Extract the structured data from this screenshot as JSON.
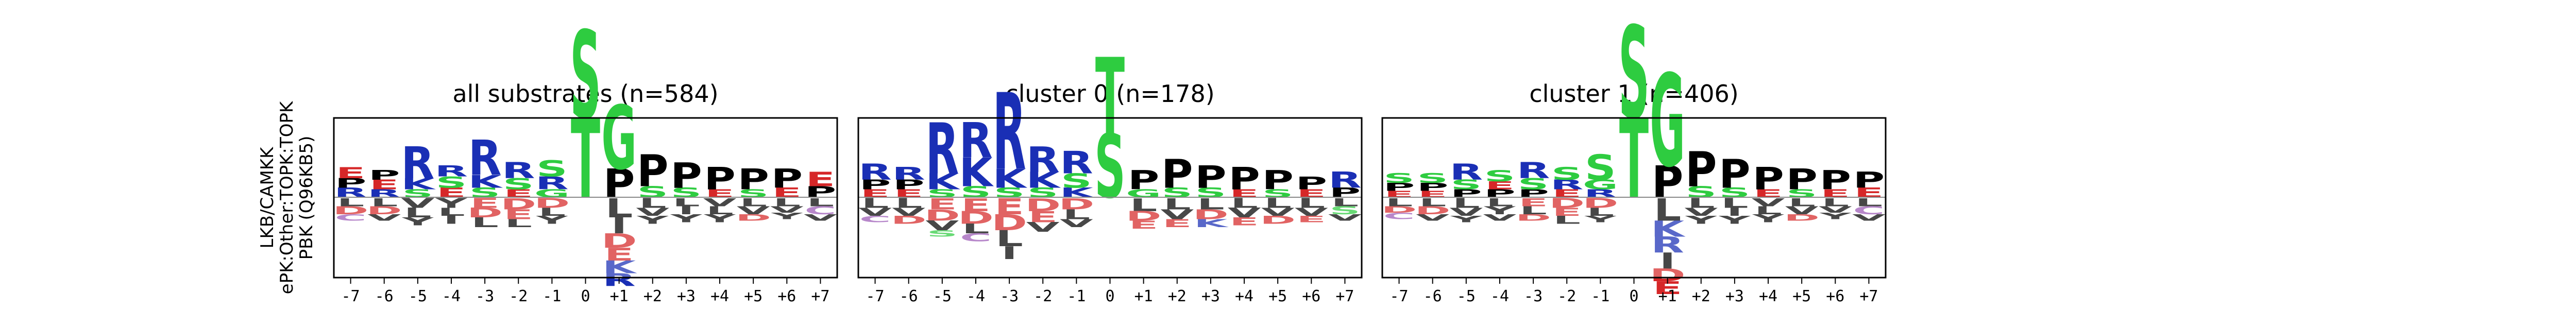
{
  "ylabel_lines": [
    "LKB/CAMKK",
    "ePK:Other:TOPK:TOPK",
    "PBK (Q96KB5)"
  ],
  "colors": {
    "S": "#2ecc40",
    "T": "#2ecc40",
    "G": "#2ecc40",
    "R": "#1a2fb5",
    "K": "#1a2fb5",
    "H": "#1a2fb5",
    "P": "#000000",
    "L": "#000000",
    "I": "#000000",
    "V": "#000000",
    "A": "#000000",
    "M": "#000000",
    "F": "#000000",
    "W": "#000000",
    "Y": "#000000",
    "D": "#d62728",
    "E": "#d62728",
    "N": "#9b59b6",
    "Q": "#9b59b6",
    "C": "#9b59b6"
  },
  "chart_data": [
    {
      "type": "logo",
      "title": "all substrates (n=584)",
      "positions": [
        "-7",
        "-6",
        "-5",
        "-4",
        "-3",
        "-2",
        "-1",
        "0",
        "+1",
        "+2",
        "+3",
        "+4",
        "+5",
        "+6",
        "+7"
      ],
      "center": "0",
      "pos_stacks": [
        [
          [
            "E",
            0.07
          ],
          [
            "R",
            0.06
          ],
          [
            "P",
            0.06
          ]
        ],
        [
          [
            "E",
            0.06
          ],
          [
            "P",
            0.06
          ],
          [
            "R",
            0.05
          ]
        ],
        [
          [
            "R",
            0.2
          ],
          [
            "K",
            0.07
          ],
          [
            "S",
            0.05
          ]
        ],
        [
          [
            "S",
            0.07
          ],
          [
            "R",
            0.07
          ],
          [
            "E",
            0.06
          ]
        ],
        [
          [
            "R",
            0.22
          ],
          [
            "K",
            0.08
          ],
          [
            "S",
            0.06
          ]
        ],
        [
          [
            "R",
            0.1
          ],
          [
            "S",
            0.07
          ],
          [
            "E",
            0.05
          ]
        ],
        [
          [
            "S",
            0.1
          ],
          [
            "R",
            0.08
          ],
          [
            "G",
            0.05
          ]
        ],
        [
          [
            "S",
            0.55
          ],
          [
            "T",
            0.5
          ]
        ],
        [
          [
            "G",
            0.4
          ],
          [
            "P",
            0.18
          ]
        ],
        [
          [
            "P",
            0.2
          ],
          [
            "S",
            0.07
          ]
        ],
        [
          [
            "P",
            0.16
          ],
          [
            "S",
            0.06
          ]
        ],
        [
          [
            "P",
            0.14
          ],
          [
            "E",
            0.05
          ]
        ],
        [
          [
            "P",
            0.13
          ],
          [
            "S",
            0.05
          ]
        ],
        [
          [
            "P",
            0.12
          ],
          [
            "E",
            0.06
          ]
        ],
        [
          [
            "E",
            0.09
          ],
          [
            "P",
            0.07
          ]
        ]
      ],
      "neg_stacks": [
        [
          [
            "L",
            0.05
          ],
          [
            "D",
            0.05
          ],
          [
            "C",
            0.04
          ]
        ],
        [
          [
            "L",
            0.05
          ],
          [
            "D",
            0.05
          ],
          [
            "V",
            0.04
          ]
        ],
        [
          [
            "V",
            0.06
          ],
          [
            "L",
            0.06
          ],
          [
            "Y",
            0.05
          ]
        ],
        [
          [
            "Y",
            0.06
          ],
          [
            "L",
            0.05
          ],
          [
            "I",
            0.05
          ]
        ],
        [
          [
            "E",
            0.06
          ],
          [
            "D",
            0.06
          ],
          [
            "L",
            0.06
          ]
        ],
        [
          [
            "D",
            0.07
          ],
          [
            "E",
            0.06
          ],
          [
            "L",
            0.05
          ]
        ],
        [
          [
            "D",
            0.06
          ],
          [
            "L",
            0.05
          ],
          [
            "Y",
            0.05
          ]
        ],
        [],
        [
          [
            "D",
            0.09
          ],
          [
            "E",
            0.08
          ],
          [
            "K",
            0.08
          ],
          [
            "R",
            0.08
          ],
          [
            "L",
            0.12
          ],
          [
            "I",
            0.1
          ]
        ],
        [
          [
            "L",
            0.06
          ],
          [
            "V",
            0.05
          ],
          [
            "Y",
            0.05
          ]
        ],
        [
          [
            "L",
            0.05
          ],
          [
            "I",
            0.05
          ],
          [
            "Y",
            0.05
          ]
        ],
        [
          [
            "V",
            0.05
          ],
          [
            "L",
            0.05
          ],
          [
            "Y",
            0.05
          ]
        ],
        [
          [
            "L",
            0.05
          ],
          [
            "V",
            0.05
          ],
          [
            "D",
            0.04
          ]
        ],
        [
          [
            "L",
            0.05
          ],
          [
            "V",
            0.04
          ],
          [
            "Y",
            0.04
          ]
        ],
        [
          [
            "L",
            0.05
          ],
          [
            "C",
            0.05
          ],
          [
            "V",
            0.04
          ]
        ]
      ]
    },
    {
      "type": "logo",
      "title": "cluster 0 (n=178)",
      "positions": [
        "-7",
        "-6",
        "-5",
        "-4",
        "-3",
        "-2",
        "-1",
        "0",
        "+1",
        "+2",
        "+3",
        "+4",
        "+5",
        "+6",
        "+7"
      ],
      "center": "0",
      "pos_stacks": [
        [
          [
            "R",
            0.1
          ],
          [
            "P",
            0.06
          ],
          [
            "E",
            0.05
          ]
        ],
        [
          [
            "R",
            0.08
          ],
          [
            "P",
            0.06
          ],
          [
            "E",
            0.05
          ]
        ],
        [
          [
            "R",
            0.32
          ],
          [
            "K",
            0.1
          ],
          [
            "S",
            0.05
          ]
        ],
        [
          [
            "R",
            0.22
          ],
          [
            "K",
            0.18
          ],
          [
            "S",
            0.07
          ]
        ],
        [
          [
            "R",
            0.48
          ],
          [
            "K",
            0.12
          ],
          [
            "S",
            0.06
          ]
        ],
        [
          [
            "R",
            0.16
          ],
          [
            "K",
            0.1
          ],
          [
            "S",
            0.06
          ]
        ],
        [
          [
            "R",
            0.14
          ],
          [
            "S",
            0.09
          ],
          [
            "K",
            0.06
          ]
        ],
        [
          [
            "T",
            0.48
          ],
          [
            "S",
            0.4
          ]
        ],
        [
          [
            "P",
            0.12
          ],
          [
            "G",
            0.05
          ]
        ],
        [
          [
            "P",
            0.18
          ],
          [
            "S",
            0.06
          ]
        ],
        [
          [
            "P",
            0.14
          ],
          [
            "S",
            0.06
          ]
        ],
        [
          [
            "P",
            0.14
          ],
          [
            "E",
            0.05
          ]
        ],
        [
          [
            "P",
            0.12
          ],
          [
            "S",
            0.05
          ]
        ],
        [
          [
            "P",
            0.08
          ],
          [
            "E",
            0.05
          ]
        ],
        [
          [
            "R",
            0.1
          ],
          [
            "P",
            0.06
          ]
        ]
      ],
      "neg_stacks": [
        [
          [
            "L",
            0.06
          ],
          [
            "V",
            0.05
          ],
          [
            "C",
            0.04
          ]
        ],
        [
          [
            "L",
            0.06
          ],
          [
            "V",
            0.05
          ],
          [
            "D",
            0.05
          ]
        ],
        [
          [
            "E",
            0.07
          ],
          [
            "D",
            0.07
          ],
          [
            "V",
            0.06
          ],
          [
            "S",
            0.04
          ]
        ],
        [
          [
            "E",
            0.08
          ],
          [
            "D",
            0.08
          ],
          [
            "L",
            0.06
          ],
          [
            "C",
            0.05
          ]
        ],
        [
          [
            "E",
            0.1
          ],
          [
            "D",
            0.1
          ],
          [
            "L",
            0.1
          ],
          [
            "I",
            0.08
          ]
        ],
        [
          [
            "D",
            0.08
          ],
          [
            "E",
            0.07
          ],
          [
            "V",
            0.06
          ]
        ],
        [
          [
            "D",
            0.07
          ],
          [
            "L",
            0.06
          ],
          [
            "V",
            0.05
          ]
        ],
        [],
        [
          [
            "L",
            0.08
          ],
          [
            "D",
            0.06
          ],
          [
            "E",
            0.05
          ]
        ],
        [
          [
            "L",
            0.07
          ],
          [
            "V",
            0.06
          ],
          [
            "E",
            0.05
          ]
        ],
        [
          [
            "L",
            0.07
          ],
          [
            "D",
            0.06
          ],
          [
            "K",
            0.05
          ]
        ],
        [
          [
            "L",
            0.06
          ],
          [
            "V",
            0.06
          ],
          [
            "E",
            0.05
          ]
        ],
        [
          [
            "L",
            0.06
          ],
          [
            "V",
            0.05
          ],
          [
            "D",
            0.05
          ]
        ],
        [
          [
            "L",
            0.06
          ],
          [
            "V",
            0.05
          ],
          [
            "E",
            0.04
          ]
        ],
        [
          [
            "L",
            0.05
          ],
          [
            "S",
            0.05
          ],
          [
            "V",
            0.04
          ]
        ]
      ]
    },
    {
      "type": "logo",
      "title": "cluster 1 (n=406)",
      "positions": [
        "-7",
        "-6",
        "-5",
        "-4",
        "-3",
        "-2",
        "-1",
        "0",
        "+1",
        "+2",
        "+3",
        "+4",
        "+5",
        "+6",
        "+7"
      ],
      "center": "0",
      "pos_stacks": [
        [
          [
            "S",
            0.06
          ],
          [
            "P",
            0.05
          ],
          [
            "E",
            0.04
          ]
        ],
        [
          [
            "S",
            0.06
          ],
          [
            "P",
            0.05
          ],
          [
            "E",
            0.04
          ]
        ],
        [
          [
            "R",
            0.1
          ],
          [
            "S",
            0.06
          ],
          [
            "P",
            0.05
          ]
        ],
        [
          [
            "S",
            0.07
          ],
          [
            "P",
            0.05
          ],
          [
            "E",
            0.05
          ]
        ],
        [
          [
            "R",
            0.1
          ],
          [
            "S",
            0.07
          ],
          [
            "P",
            0.05
          ]
        ],
        [
          [
            "S",
            0.08
          ],
          [
            "R",
            0.06
          ],
          [
            "E",
            0.05
          ]
        ],
        [
          [
            "S",
            0.16
          ],
          [
            "G",
            0.06
          ],
          [
            "R",
            0.05
          ]
        ],
        [
          [
            "S",
            0.58
          ],
          [
            "T",
            0.5
          ]
        ],
        [
          [
            "G",
            0.58
          ],
          [
            "P",
            0.2
          ]
        ],
        [
          [
            "P",
            0.22
          ],
          [
            "S",
            0.07
          ]
        ],
        [
          [
            "P",
            0.18
          ],
          [
            "S",
            0.06
          ]
        ],
        [
          [
            "P",
            0.14
          ],
          [
            "E",
            0.05
          ]
        ],
        [
          [
            "P",
            0.13
          ],
          [
            "S",
            0.05
          ]
        ],
        [
          [
            "P",
            0.12
          ],
          [
            "E",
            0.05
          ]
        ],
        [
          [
            "P",
            0.1
          ],
          [
            "E",
            0.06
          ]
        ]
      ],
      "neg_stacks": [
        [
          [
            "L",
            0.05
          ],
          [
            "D",
            0.04
          ],
          [
            "C",
            0.04
          ]
        ],
        [
          [
            "L",
            0.05
          ],
          [
            "D",
            0.05
          ],
          [
            "V",
            0.04
          ]
        ],
        [
          [
            "L",
            0.06
          ],
          [
            "V",
            0.05
          ],
          [
            "Y",
            0.04
          ]
        ],
        [
          [
            "L",
            0.05
          ],
          [
            "Y",
            0.05
          ],
          [
            "V",
            0.04
          ]
        ],
        [
          [
            "E",
            0.05
          ],
          [
            "L",
            0.05
          ],
          [
            "D",
            0.04
          ]
        ],
        [
          [
            "D",
            0.06
          ],
          [
            "E",
            0.05
          ],
          [
            "L",
            0.05
          ]
        ],
        [
          [
            "D",
            0.06
          ],
          [
            "L",
            0.05
          ],
          [
            "Y",
            0.04
          ]
        ],
        [],
        [
          [
            "D",
            0.08
          ],
          [
            "E",
            0.08
          ],
          [
            "K",
            0.1
          ],
          [
            "R",
            0.1
          ],
          [
            "L",
            0.14
          ],
          [
            "I",
            0.1
          ]
        ],
        [
          [
            "L",
            0.06
          ],
          [
            "V",
            0.05
          ],
          [
            "Y",
            0.05
          ]
        ],
        [
          [
            "L",
            0.06
          ],
          [
            "I",
            0.05
          ],
          [
            "Y",
            0.05
          ]
        ],
        [
          [
            "V",
            0.05
          ],
          [
            "L",
            0.05
          ],
          [
            "Y",
            0.05
          ]
        ],
        [
          [
            "L",
            0.05
          ],
          [
            "V",
            0.05
          ],
          [
            "D",
            0.04
          ]
        ],
        [
          [
            "L",
            0.05
          ],
          [
            "V",
            0.04
          ],
          [
            "Y",
            0.04
          ]
        ],
        [
          [
            "L",
            0.05
          ],
          [
            "C",
            0.05
          ],
          [
            "V",
            0.04
          ]
        ]
      ]
    }
  ]
}
